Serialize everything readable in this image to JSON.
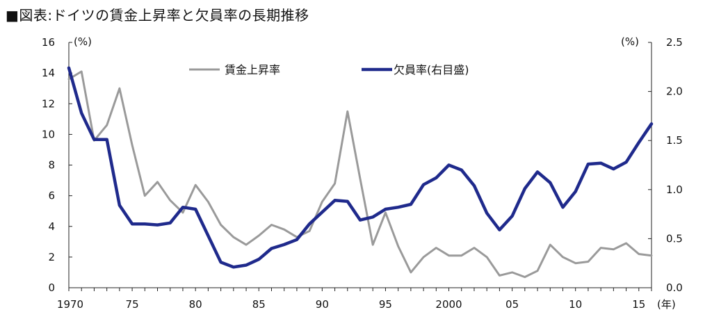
{
  "title": "■図表:ドイツの賃金上昇率と欠員率の長期推移",
  "chart_data": {
    "type": "line",
    "title": "■図表:ドイツの賃金上昇率と欠員率の長期推移",
    "left_unit": "(%)",
    "right_unit": "(%)",
    "x_unit": "(年)",
    "x_start": 1970,
    "x_end": 2016,
    "x_ticks": [
      1970,
      1975,
      1980,
      1985,
      1990,
      1995,
      2000,
      2005,
      2010,
      2015
    ],
    "x_tick_labels": [
      "1970",
      "75",
      "80",
      "85",
      "90",
      "95",
      "2000",
      "05",
      "10",
      "15"
    ],
    "ylim_left": [
      0,
      16
    ],
    "y_ticks_left": [
      "0",
      "2",
      "4",
      "6",
      "8",
      "10",
      "12",
      "14",
      "16"
    ],
    "ylim_right": [
      0,
      2.5
    ],
    "y_ticks_right": [
      "0.0",
      "0.5",
      "1.0",
      "1.5",
      "2.0",
      "2.5"
    ],
    "legend_position": "top-center",
    "series": [
      {
        "name": "賃金上昇率",
        "axis": "left",
        "color": "#9a9a9a",
        "x": [
          1970,
          1971,
          1972,
          1973,
          1974,
          1975,
          1976,
          1977,
          1978,
          1979,
          1980,
          1981,
          1982,
          1983,
          1984,
          1985,
          1986,
          1987,
          1988,
          1989,
          1990,
          1991,
          1992,
          1993,
          1994,
          1995,
          1996,
          1997,
          1998,
          1999,
          2000,
          2001,
          2002,
          2003,
          2004,
          2005,
          2006,
          2007,
          2008,
          2009,
          2010,
          2011,
          2012,
          2013,
          2014,
          2015,
          2016
        ],
        "values": [
          13.6,
          14.1,
          9.6,
          10.6,
          13.0,
          9.3,
          6.0,
          6.9,
          5.7,
          4.9,
          6.7,
          5.6,
          4.1,
          3.3,
          2.8,
          3.4,
          4.1,
          3.8,
          3.3,
          3.7,
          5.6,
          6.8,
          11.5,
          7.1,
          2.8,
          4.9,
          2.7,
          1.0,
          2.0,
          2.6,
          2.1,
          2.1,
          2.6,
          2.0,
          0.8,
          1.0,
          0.7,
          1.1,
          2.8,
          2.0,
          1.6,
          1.7,
          2.6,
          2.5,
          2.9,
          2.2,
          2.1
        ]
      },
      {
        "name": "欠員率(右目盛)",
        "axis": "right",
        "color": "#1f2a8c",
        "x": [
          1970,
          1971,
          1972,
          1973,
          1974,
          1975,
          1976,
          1977,
          1978,
          1979,
          1980,
          1981,
          1982,
          1983,
          1984,
          1985,
          1986,
          1987,
          1988,
          1989,
          1990,
          1991,
          1992,
          1993,
          1994,
          1995,
          1996,
          1997,
          1998,
          1999,
          2000,
          2001,
          2002,
          2003,
          2004,
          2005,
          2006,
          2007,
          2008,
          2009,
          2010,
          2011,
          2012,
          2013,
          2014,
          2015,
          2016
        ],
        "values": [
          2.24,
          1.78,
          1.51,
          1.51,
          0.84,
          0.65,
          0.65,
          0.64,
          0.66,
          0.82,
          0.8,
          0.53,
          0.26,
          0.21,
          0.23,
          0.29,
          0.4,
          0.44,
          0.49,
          0.65,
          0.77,
          0.89,
          0.88,
          0.69,
          0.72,
          0.8,
          0.82,
          0.85,
          1.05,
          1.12,
          1.25,
          1.2,
          1.04,
          0.76,
          0.59,
          0.73,
          1.01,
          1.18,
          1.07,
          0.82,
          0.98,
          1.26,
          1.27,
          1.21,
          1.28,
          1.48,
          1.67
        ]
      }
    ]
  }
}
